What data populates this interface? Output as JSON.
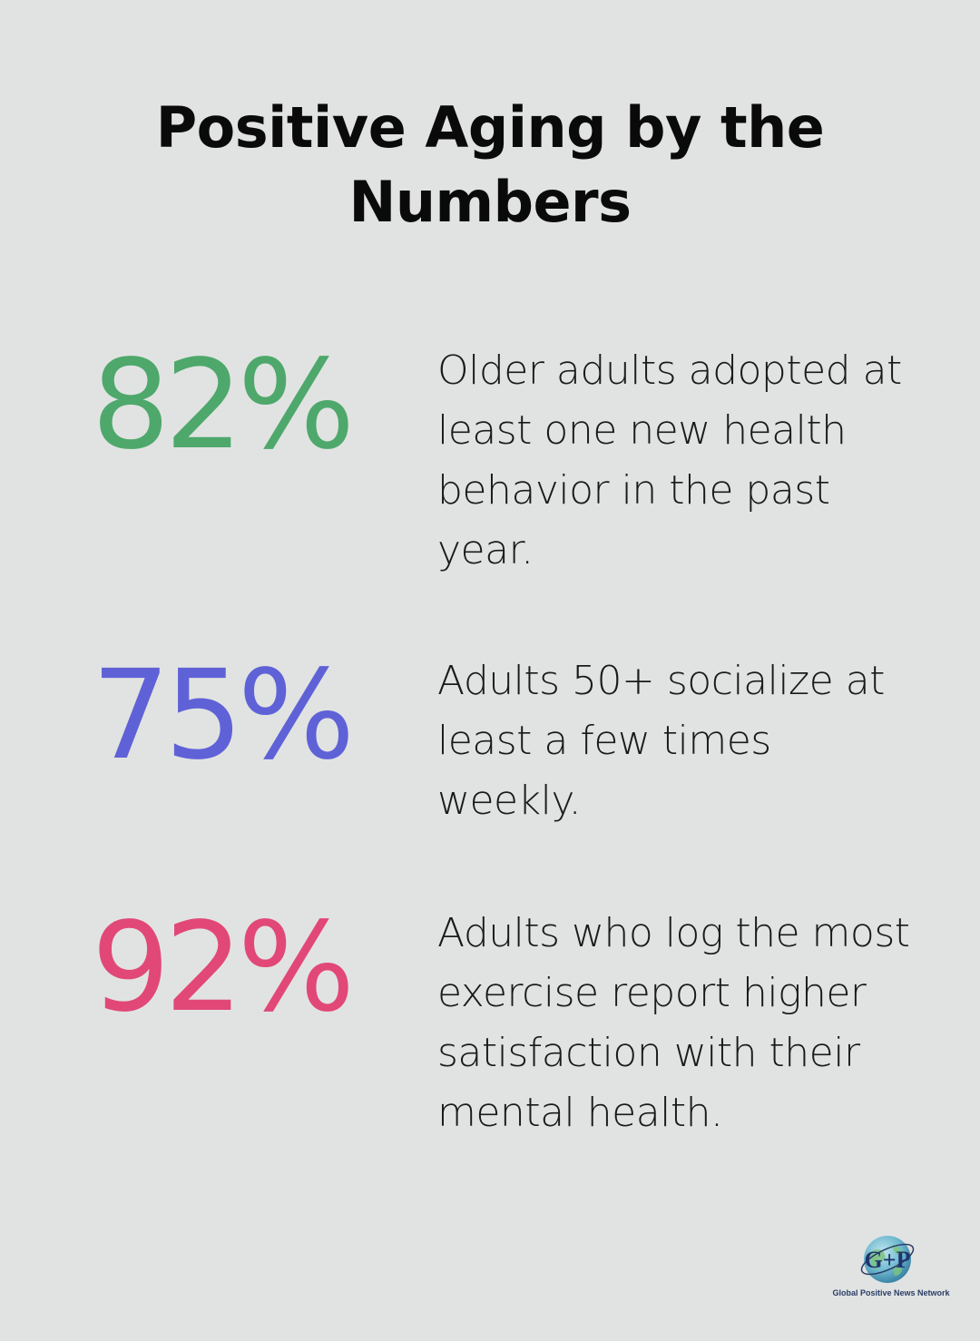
{
  "title": "Positive Aging by the Numbers",
  "stats": [
    {
      "value": "82%",
      "description": "Older adults adopted at least one new health behavior in the past year.",
      "color": "#4ea86b"
    },
    {
      "value": "75%",
      "description": "Adults 50+ socialize at least a few times weekly.",
      "color": "#5f62d6"
    },
    {
      "value": "92%",
      "description": "Adults who log the most exercise report higher satisfaction with their mental health.",
      "color": "#e14878"
    }
  ],
  "logo": {
    "mark": "G+P",
    "caption": "Global Positive News Network",
    "icon": "globe-logo-icon"
  }
}
